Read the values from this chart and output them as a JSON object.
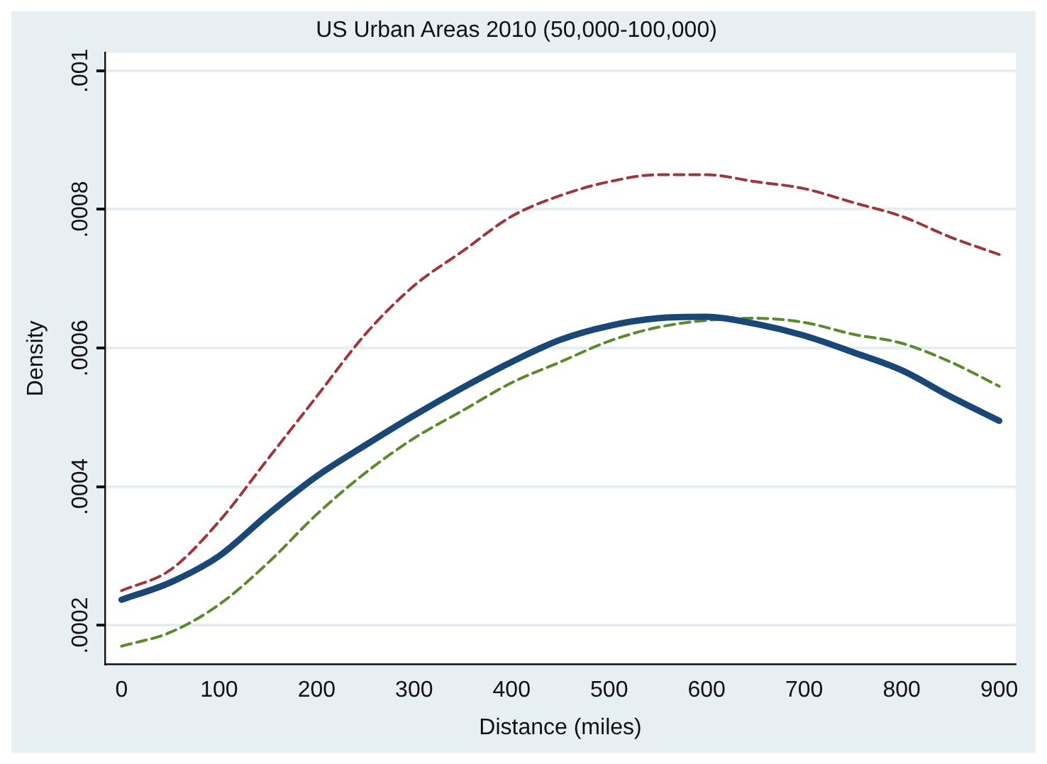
{
  "chart_data": {
    "type": "line",
    "title": "US Urban Areas 2010 (50,000-100,000)",
    "xlabel": "Distance (miles)",
    "ylabel": "Density",
    "x": [
      0,
      50,
      100,
      150,
      200,
      250,
      300,
      350,
      400,
      450,
      500,
      550,
      600,
      650,
      700,
      750,
      800,
      850,
      900
    ],
    "series": [
      {
        "color": "#1a4876",
        "line_style": "solid",
        "values": [
          0.000237,
          0.000262,
          0.0003,
          0.00036,
          0.000415,
          0.00046,
          0.000503,
          0.000543,
          0.00058,
          0.000612,
          0.000632,
          0.000643,
          0.000645,
          0.000635,
          0.000618,
          0.000594,
          0.000568,
          0.00053,
          0.000495
        ]
      },
      {
        "color": "#a0363a",
        "line_style": "dashed",
        "values": [
          0.00025,
          0.00028,
          0.00035,
          0.00044,
          0.00053,
          0.00062,
          0.00069,
          0.00074,
          0.00079,
          0.00082,
          0.00084,
          0.00085,
          0.00085,
          0.00084,
          0.00083,
          0.00081,
          0.00079,
          0.00076,
          0.000735
        ]
      },
      {
        "color": "#5a8a2e",
        "line_style": "dashed",
        "values": [
          0.00017,
          0.00019,
          0.00023,
          0.00029,
          0.00036,
          0.00042,
          0.00047,
          0.00051,
          0.00055,
          0.00058,
          0.00061,
          0.00063,
          0.00064,
          0.000643,
          0.000637,
          0.00062,
          0.000607,
          0.00058,
          0.000545
        ]
      }
    ],
    "xlim": [
      -17,
      917
    ],
    "xticks": [
      0,
      100,
      200,
      300,
      400,
      500,
      600,
      700,
      800,
      900
    ],
    "ylim": [
      0.000144,
      0.001026
    ],
    "yticks": [
      {
        "value": 0.0002,
        "label": ".0002"
      },
      {
        "value": 0.0004,
        "label": ".0004"
      },
      {
        "value": 0.0006,
        "label": ".0006"
      },
      {
        "value": 0.0008,
        "label": ".0008"
      },
      {
        "value": 0.001,
        "label": ".001"
      }
    ],
    "grid": "y",
    "legend": false,
    "marker": "none"
  }
}
